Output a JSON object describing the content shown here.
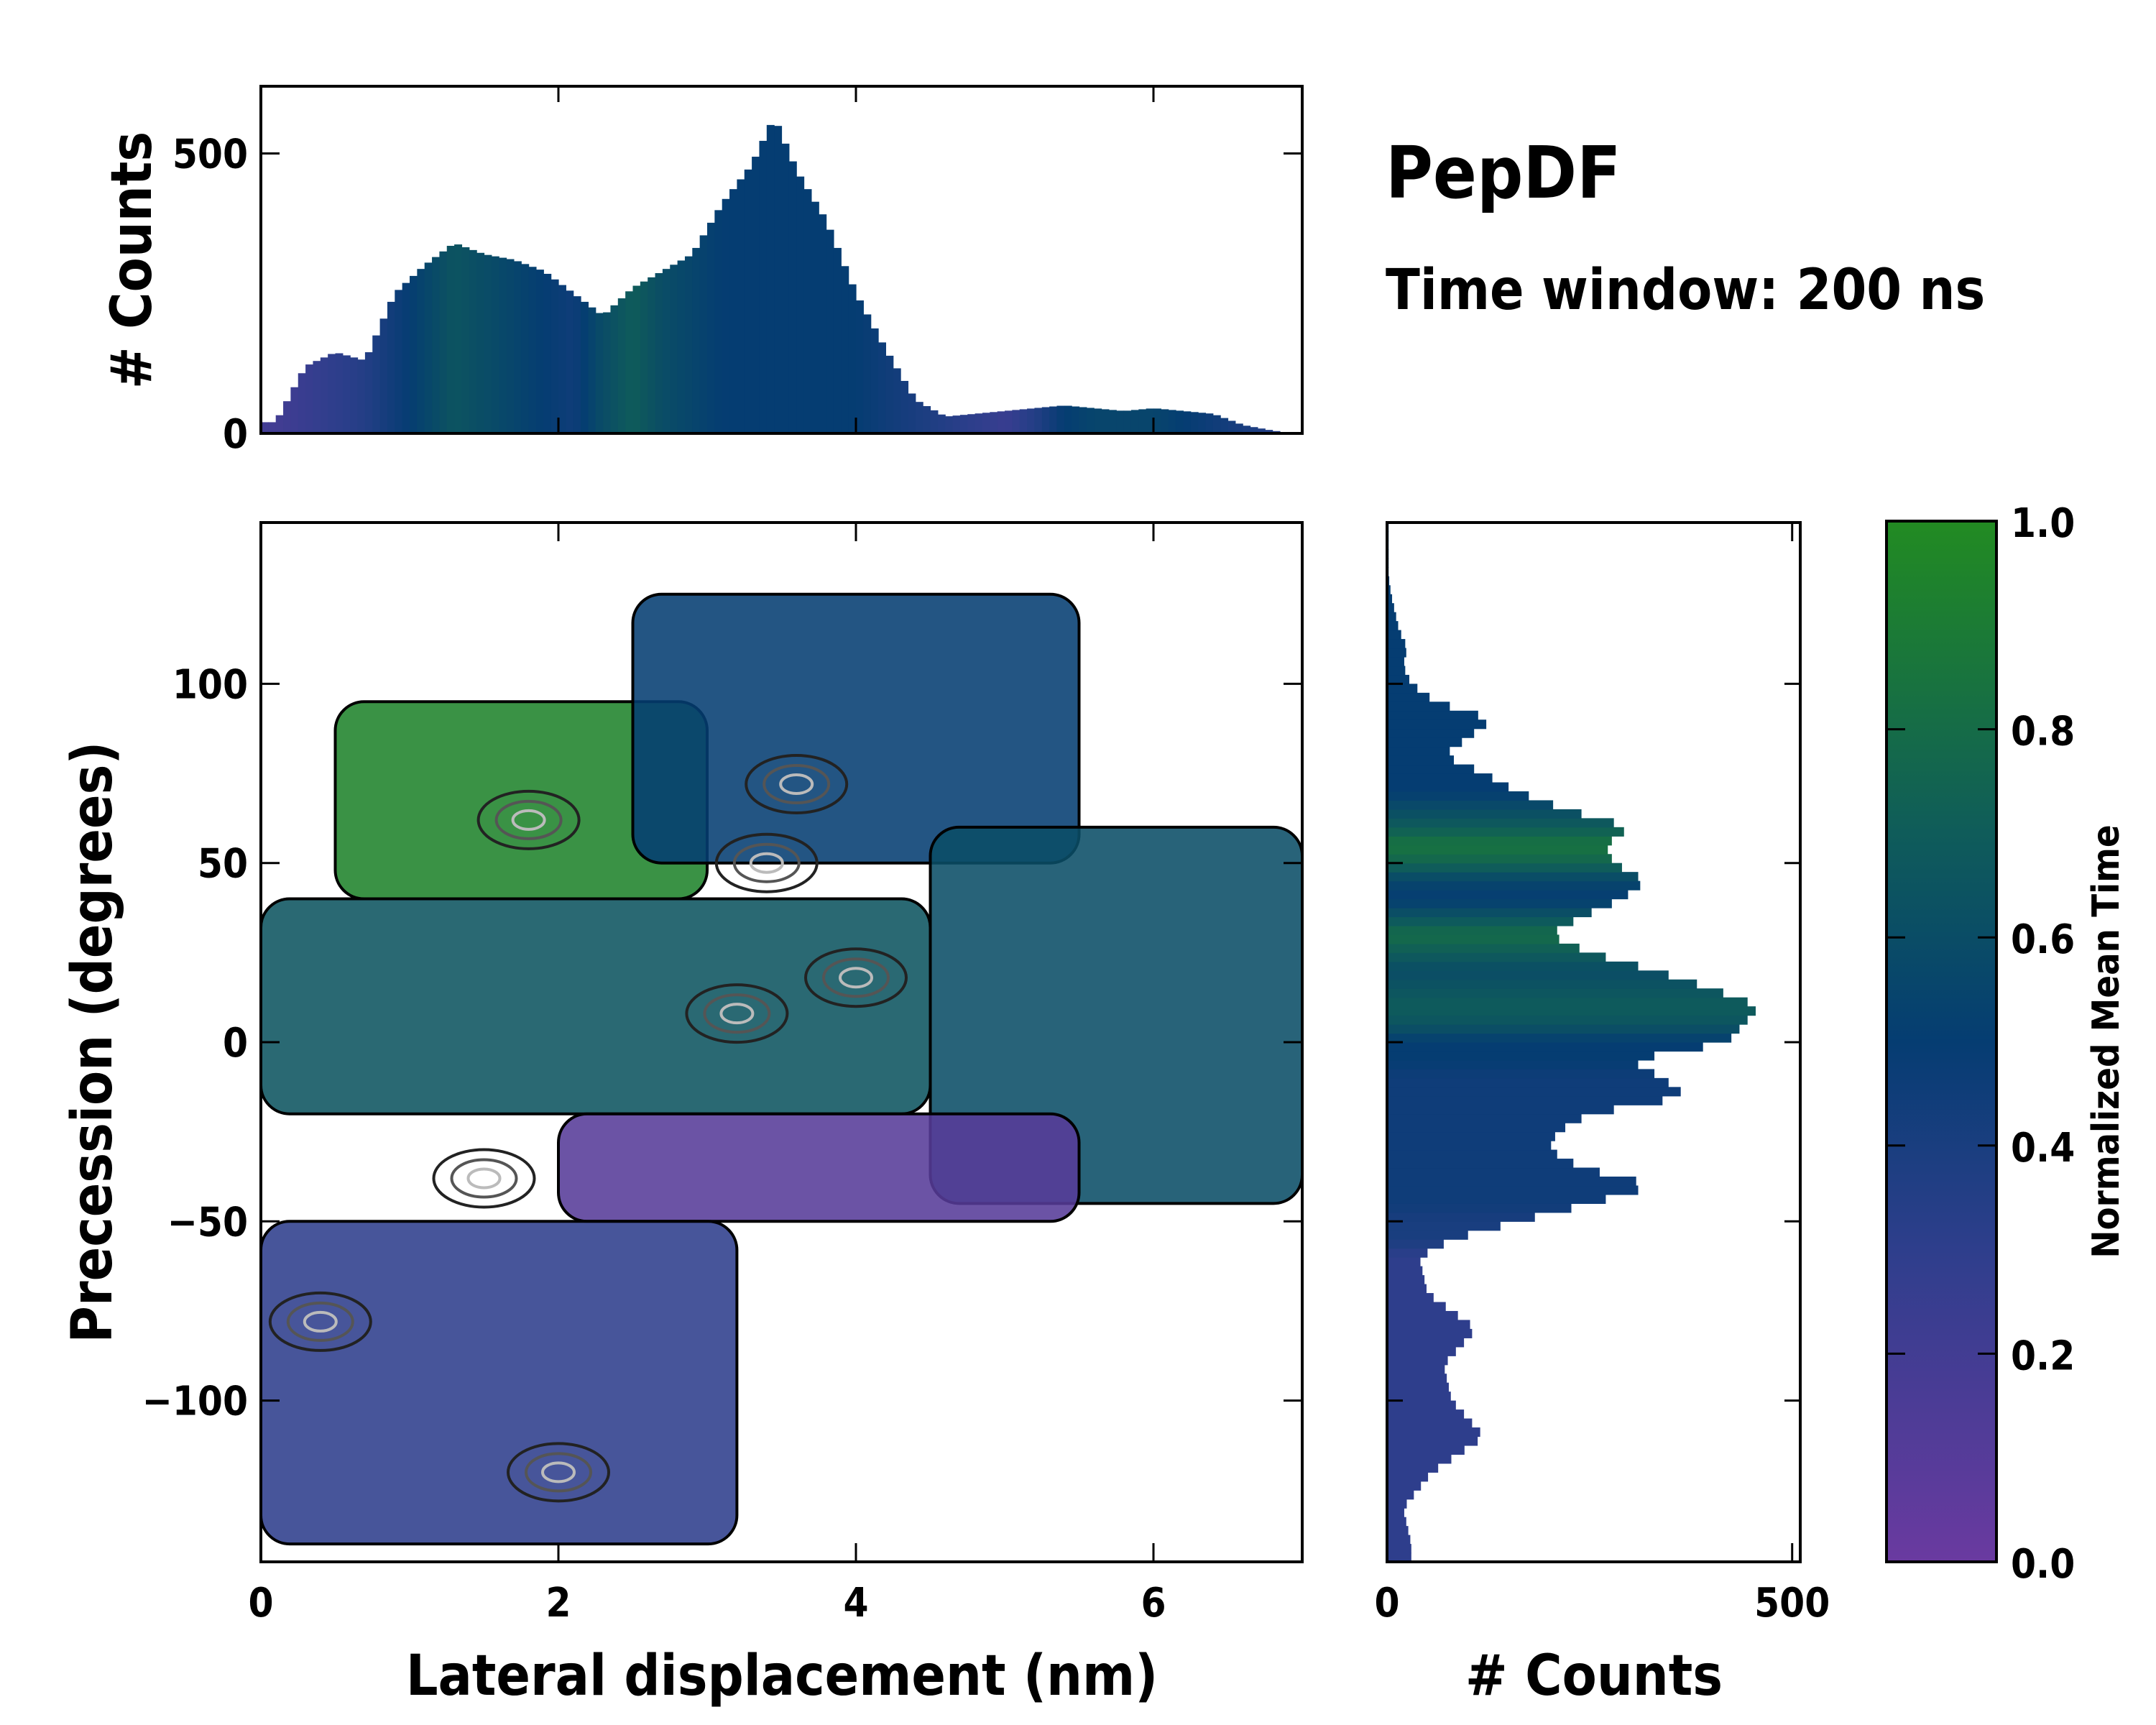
{
  "figure": {
    "title": "PepDF",
    "subtitle": "Time window: 200 ns"
  },
  "colors": {
    "low": "#6a3aa0",
    "mid_low": "#2e3e8c",
    "mid": "#053d72",
    "mid_high": "#0f5c5a",
    "high": "#228b22",
    "contour": "#000000"
  },
  "chart_data": [
    {
      "id": "main",
      "type": "heatmap",
      "xlabel": "Lateral displacement (nm)",
      "ylabel": "Precession (degrees)",
      "xlim": [
        0,
        7
      ],
      "ylim": [
        -145,
        145
      ],
      "xticks": [
        0,
        2,
        4,
        6
      ],
      "xtick_labels": [
        "0",
        "2",
        "4",
        "6"
      ],
      "yticks": [
        -100,
        -50,
        0,
        50,
        100
      ],
      "ytick_labels": [
        "−100",
        "−50",
        "0",
        "50",
        "100"
      ],
      "value_label": "Normalized Mean Time",
      "regions": [
        {
          "name": "green-upper-left",
          "x_range": [
            0.5,
            3.0
          ],
          "y_range": [
            40,
            95
          ],
          "mean_time": 0.95
        },
        {
          "name": "teal-center",
          "x_range": [
            0.0,
            4.5
          ],
          "y_range": [
            -20,
            40
          ],
          "mean_time": 0.65
        },
        {
          "name": "blue-upper",
          "x_range": [
            2.5,
            5.5
          ],
          "y_range": [
            50,
            125
          ],
          "mean_time": 0.5
        },
        {
          "name": "teal-right",
          "x_range": [
            4.5,
            7.0
          ],
          "y_range": [
            -45,
            60
          ],
          "mean_time": 0.6
        },
        {
          "name": "purple-band",
          "x_range": [
            2.0,
            5.5
          ],
          "y_range": [
            -50,
            -20
          ],
          "mean_time": 0.1
        },
        {
          "name": "indigo-lower",
          "x_range": [
            0.0,
            3.2
          ],
          "y_range": [
            -140,
            -50
          ],
          "mean_time": 0.3
        }
      ],
      "density_peaks": [
        {
          "x": 4.0,
          "y": 18
        },
        {
          "x": 3.6,
          "y": 72
        },
        {
          "x": 3.4,
          "y": 50
        },
        {
          "x": 3.2,
          "y": 8
        },
        {
          "x": 1.8,
          "y": 62
        },
        {
          "x": 1.5,
          "y": -38
        },
        {
          "x": 0.4,
          "y": -78
        },
        {
          "x": 2.0,
          "y": -120
        }
      ]
    },
    {
      "id": "top-marginal",
      "type": "bar",
      "ylabel": "# Counts",
      "xlim": [
        0,
        7
      ],
      "ylim": [
        0,
        620
      ],
      "yticks": [
        0,
        500
      ],
      "ytick_labels": [
        "0",
        "500"
      ],
      "bin_width": 0.05,
      "x": [
        0.1,
        0.3,
        0.5,
        0.7,
        0.9,
        1.1,
        1.3,
        1.5,
        1.7,
        1.9,
        2.1,
        2.3,
        2.5,
        2.7,
        2.9,
        3.1,
        3.3,
        3.45,
        3.6,
        3.8,
        4.0,
        4.2,
        4.4,
        4.6,
        4.8,
        5.0,
        5.2,
        5.4,
        5.6,
        5.8,
        6.0,
        6.2,
        6.4,
        6.6,
        6.8,
        6.95
      ],
      "values": [
        20,
        120,
        145,
        130,
        250,
        300,
        340,
        320,
        310,
        290,
        250,
        210,
        260,
        290,
        320,
        410,
        480,
        565,
        470,
        380,
        250,
        150,
        60,
        30,
        35,
        40,
        45,
        50,
        45,
        40,
        45,
        40,
        35,
        15,
        5,
        0
      ],
      "mean_time": [
        0.2,
        0.25,
        0.3,
        0.35,
        0.45,
        0.55,
        0.65,
        0.6,
        0.55,
        0.5,
        0.45,
        0.6,
        0.7,
        0.6,
        0.55,
        0.5,
        0.5,
        0.5,
        0.5,
        0.5,
        0.5,
        0.45,
        0.4,
        0.35,
        0.3,
        0.25,
        0.35,
        0.5,
        0.55,
        0.55,
        0.55,
        0.5,
        0.45,
        0.4,
        0.35,
        0.3
      ]
    },
    {
      "id": "right-marginal",
      "type": "bar",
      "orientation": "horizontal",
      "xlabel": "# Counts",
      "xlim": [
        0,
        510
      ],
      "ylim": [
        -145,
        145
      ],
      "xticks": [
        0,
        500
      ],
      "xtick_labels": [
        "0",
        "500"
      ],
      "bin_width": 2.5,
      "y": [
        -140,
        -130,
        -120,
        -110,
        -100,
        -90,
        -80,
        -70,
        -60,
        -55,
        -50,
        -45,
        -40,
        -35,
        -30,
        -25,
        -20,
        -15,
        -10,
        -5,
        0,
        5,
        10,
        15,
        20,
        25,
        30,
        35,
        40,
        45,
        50,
        55,
        60,
        65,
        70,
        75,
        80,
        85,
        90,
        95,
        100,
        105,
        110,
        115,
        120,
        125,
        130
      ],
      "values": [
        30,
        20,
        55,
        120,
        80,
        70,
        110,
        50,
        40,
        80,
        160,
        250,
        330,
        240,
        200,
        210,
        250,
        370,
        340,
        300,
        420,
        440,
        460,
        400,
        330,
        250,
        200,
        240,
        290,
        320,
        280,
        270,
        300,
        220,
        160,
        120,
        70,
        100,
        130,
        60,
        30,
        20,
        25,
        15,
        10,
        5,
        2
      ],
      "mean_time": [
        0.3,
        0.3,
        0.3,
        0.3,
        0.3,
        0.3,
        0.3,
        0.3,
        0.3,
        0.4,
        0.4,
        0.45,
        0.45,
        0.45,
        0.45,
        0.45,
        0.45,
        0.45,
        0.45,
        0.5,
        0.5,
        0.65,
        0.7,
        0.65,
        0.6,
        0.7,
        0.8,
        0.65,
        0.5,
        0.55,
        0.75,
        0.85,
        0.7,
        0.6,
        0.5,
        0.5,
        0.5,
        0.5,
        0.5,
        0.5,
        0.5,
        0.5,
        0.5,
        0.5,
        0.5,
        0.5,
        0.5
      ]
    },
    {
      "id": "colorbar",
      "type": "colorbar",
      "label": "Normalized Mean Time",
      "range": [
        0,
        1
      ],
      "ticks": [
        0.0,
        0.2,
        0.4,
        0.6,
        0.8,
        1.0
      ],
      "tick_labels": [
        "0.0",
        "0.2",
        "0.4",
        "0.6",
        "0.8",
        "1.0"
      ]
    }
  ]
}
